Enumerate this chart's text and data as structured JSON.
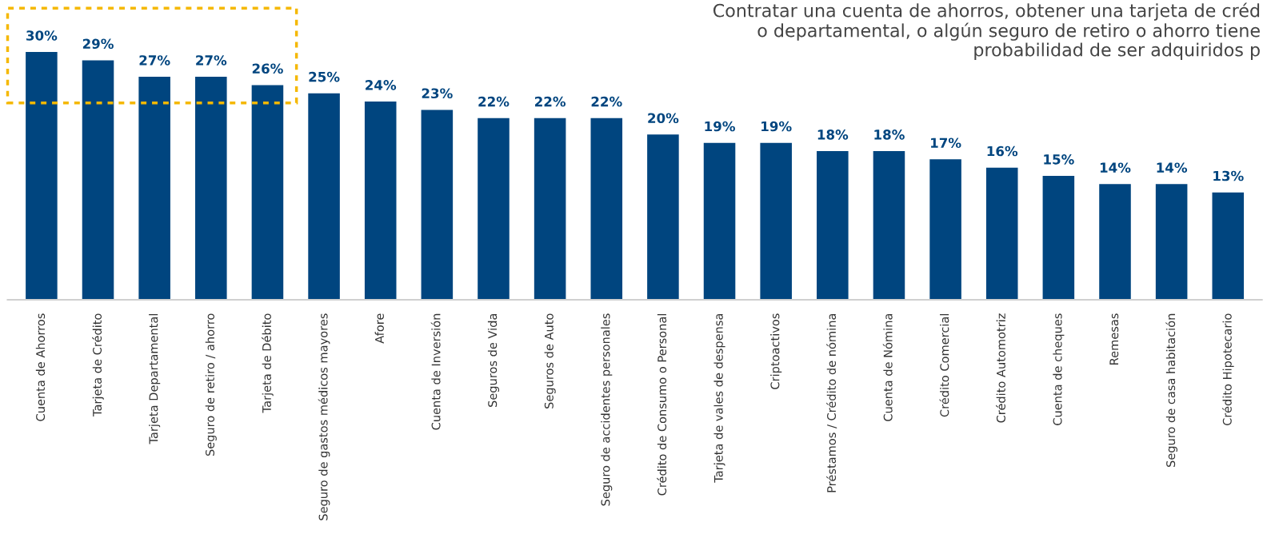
{
  "chart_data": {
    "type": "bar",
    "title": "Contratar una cuenta de ahorros, obtener una tarjeta de créd\no departamental, o algún seguro de retiro o ahorro tiene\nprobabilidad de ser adquiridos p",
    "categories": [
      "Cuenta de Ahorros",
      "Tarjeta de Crédito",
      "Tarjeta Departamental",
      "Seguro de retiro / ahorro",
      "Tarjeta de Débito",
      "Seguro de gastos médicos mayores",
      "Afore",
      "Cuenta de Inversión",
      "Seguros de Vida",
      "Seguros de Auto",
      "Seguro de accidentes personales",
      "Crédito de Consumo o Personal",
      "Tarjeta de vales de despensa",
      "Criptoactivos",
      "Préstamos / Crédito de nómina",
      "Cuenta de Nómina",
      "Crédito Comercial",
      "Crédito Automotriz",
      "Cuenta de cheques",
      "Remesas",
      "Seguro de casa habitación",
      "Crédito Hipotecario"
    ],
    "values": [
      30,
      29,
      27,
      27,
      26,
      25,
      24,
      23,
      22,
      22,
      22,
      20,
      19,
      19,
      18,
      18,
      17,
      16,
      15,
      14,
      14,
      13
    ],
    "value_labels": [
      "30%",
      "29%",
      "27%",
      "27%",
      "26%",
      "25%",
      "24%",
      "23%",
      "22%",
      "22%",
      "22%",
      "20%",
      "19%",
      "19%",
      "18%",
      "18%",
      "17%",
      "16%",
      "15%",
      "14%",
      "14%",
      "13%"
    ],
    "color": "#00457f",
    "grid": false,
    "legend": false
  }
}
